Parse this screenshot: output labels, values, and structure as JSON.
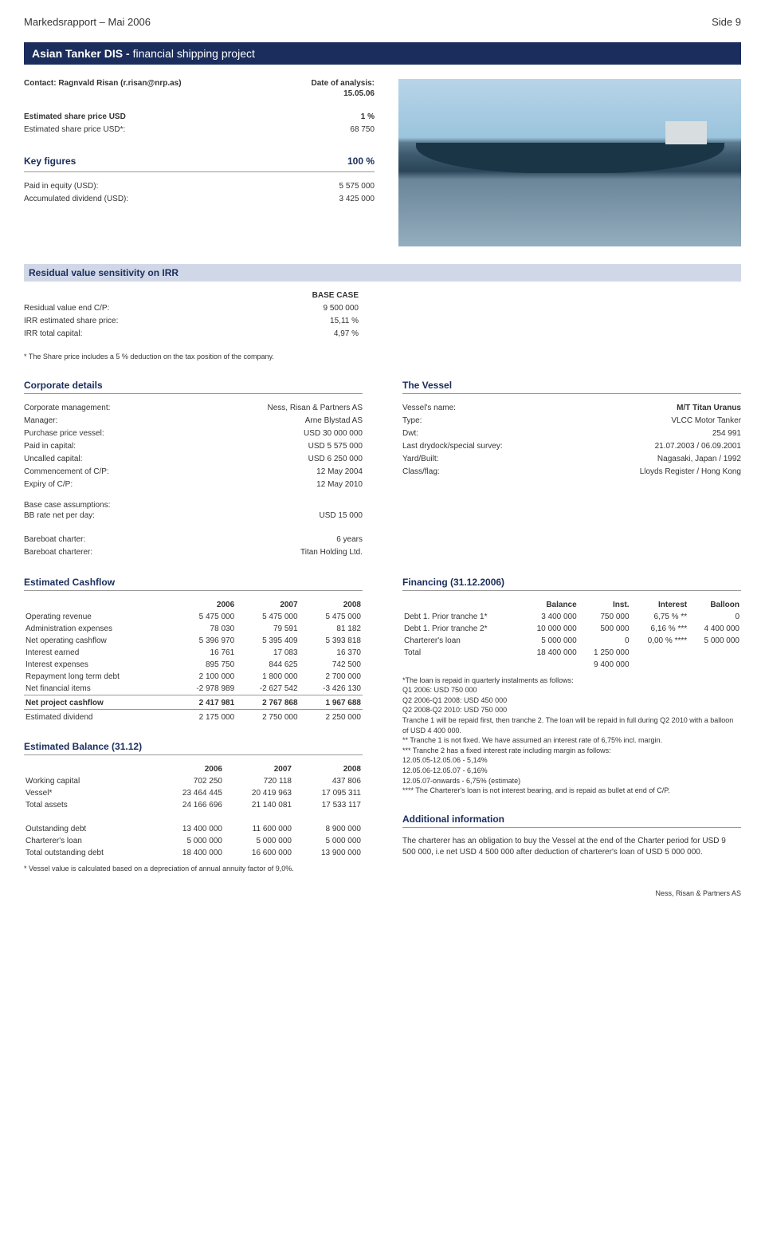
{
  "header": {
    "left": "Markedsrapport – Mai 2006",
    "right": "Side 9"
  },
  "banner": {
    "b1": "Asian Tanker  DIS - ",
    "b2": "financial shipping project"
  },
  "contact": {
    "label": "Contact: Ragnvald Risan (r.risan@nrp.as)",
    "date_lbl": "Date of analysis:",
    "date": "15.05.06"
  },
  "esp": {
    "l1_lbl": "Estimated share price USD",
    "l1_val": "1 %",
    "l2_lbl": "Estimated share price USD*:",
    "l2_val": "68 750"
  },
  "keyfig": {
    "hdr": "Key figures",
    "col_val": "100 %",
    "r1_lbl": "Paid in equity (USD):",
    "r1_val": "5 575 000",
    "r2_lbl": "Accumulated dividend (USD):",
    "r2_val": "3 425 000"
  },
  "sens": {
    "hdr": "Residual value sensitivity on IRR",
    "col_val": "BASE CASE",
    "r1_lbl": "Residual value end C/P:",
    "r1_val": "9 500 000",
    "r2_lbl": "IRR estimated share price:",
    "r2_val": "15,11 %",
    "r3_lbl": "IRR total capital:",
    "r3_val": "4,97 %"
  },
  "note1": "* The Share price includes a 5 % deduction on the tax position of the company.",
  "corp": {
    "hdr": "Corporate details",
    "rows": [
      [
        "Corporate  management:",
        "Ness, Risan & Partners AS"
      ],
      [
        "Manager:",
        "Arne Blystad AS"
      ],
      [
        "",
        ""
      ],
      [
        "Purchase price vessel:",
        "USD 30 000 000"
      ],
      [
        "Paid in capital:",
        "USD   5 575 000"
      ],
      [
        "Uncalled capital:",
        "USD   6 250 000"
      ],
      [
        "Commencement of C/P:",
        "12 May 2004"
      ],
      [
        "Expiry of C/P:",
        "12 May 2010"
      ]
    ],
    "base_lbl": "Base case assumptions:",
    "bb_lbl": "BB rate net per day:",
    "bb_val": "USD 15 000",
    "bc_lbl": "Bareboat charter:",
    "bc_val": "6 years",
    "bch_lbl": "Bareboat charterer:",
    "bch_val": "Titan Holding Ltd."
  },
  "vessel": {
    "hdr": "The Vessel",
    "rows": [
      [
        "Vessel's name:",
        "M/T Titan Uranus"
      ],
      [
        "Type:",
        "VLCC Motor Tanker"
      ],
      [
        "Dwt:",
        "254 991"
      ],
      [
        "Last drydock/special survey:",
        "21.07.2003 / 06.09.2001"
      ],
      [
        "Yard/Built:",
        "Nagasaki, Japan / 1992"
      ],
      [
        "Class/flag:",
        "Lloyds Register / Hong Kong"
      ]
    ]
  },
  "cash": {
    "hdr": "Estimated Cashflow",
    "cols": [
      "",
      "2006",
      "2007",
      "2008"
    ],
    "rows": [
      [
        "Operating revenue",
        "5 475 000",
        "5 475 000",
        "5 475 000"
      ],
      [
        "Administration expenses",
        "78 030",
        "79 591",
        "81 182"
      ],
      [
        "Net operating cashflow",
        "5 396 970",
        "5 395 409",
        "5 393 818"
      ],
      [
        "Interest earned",
        "16 761",
        "17 083",
        "16 370"
      ],
      [
        "Interest expenses",
        "895 750",
        "844 625",
        "742 500"
      ],
      [
        "Repayment long term debt",
        "2 100 000",
        "1 800 000",
        "2 700 000"
      ],
      [
        "Net financial items",
        "-2 978 989",
        "-2 627 542",
        "-3 426 130"
      ]
    ],
    "net_row": [
      "Net project cashflow",
      "2 417 981",
      "2 767 868",
      "1 967 688"
    ],
    "div_row": [
      "Estimated dividend",
      "2 175 000",
      "2 750 000",
      "2 250 000"
    ]
  },
  "fin": {
    "hdr": "Financing (31.12.2006)",
    "cols": [
      "",
      "Balance",
      "Inst.",
      "Interest",
      "Balloon"
    ],
    "rows": [
      [
        "Debt 1. Prior tranche 1*",
        "3 400 000",
        "750 000",
        "6,75 % **",
        "0"
      ],
      [
        "Debt 1. Prior tranche 2*",
        "10 000 000",
        "500 000",
        "6,16 % ***",
        "4 400 000"
      ],
      [
        "Charterer's loan",
        "5 000 000",
        "0",
        "0,00 % ****",
        "5 000 000"
      ],
      [
        "Total",
        "18 400 000",
        "1 250 000",
        "",
        ""
      ],
      [
        "",
        "",
        "9 400 000",
        "",
        ""
      ]
    ],
    "notes": [
      "*The loan is repaid in quarterly instalments as follows:",
      "Q1 2006:             USD 750 000",
      "Q2 2006-Q1 2008: USD 450 000",
      "Q2 2008-Q2 2010: USD 750 000",
      "Tranche 1 will be repaid first, then tranche 2. The loan will be repaid in full during Q2 2010 with a balloon of USD 4 400 000.",
      "** Tranche 1 is not fixed. We have assumed an interest rate of 6,75% incl. margin.",
      "*** Tranche 2 has a fixed interest rate including margin as follows:",
      "12.05.05-12.05.06  - 5,14%",
      "12.05.06-12.05.07  - 6,16%",
      "12.05.07-onwards  - 6,75% (estimate)",
      "**** The Charterer's loan is not interest bearing, and is repaid as bullet at end of C/P."
    ]
  },
  "bal": {
    "hdr": "Estimated Balance (31.12)",
    "cols": [
      "",
      "2006",
      "2007",
      "2008"
    ],
    "rows": [
      [
        "Working capital",
        "702 250",
        "720 118",
        "437 806"
      ],
      [
        "Vessel*",
        "23 464 445",
        "20 419 963",
        "17 095 311"
      ],
      [
        "Total assets",
        "24 166 696",
        "21 140 081",
        "17 533 117"
      ]
    ],
    "rows2": [
      [
        "Outstanding debt",
        "13 400 000",
        "11 600 000",
        "8 900 000"
      ],
      [
        "Charterer's loan",
        "5 000 000",
        "5 000 000",
        "5 000 000"
      ],
      [
        "Total outstanding debt",
        "18 400 000",
        "16 600 000",
        "13 900 000"
      ]
    ],
    "note": "* Vessel  value is calculated based on a depreciation of annual annuity factor of 9,0%."
  },
  "add": {
    "hdr": "Additional information",
    "text": "The charterer has an obligation to buy the Vessel at the end of the Charter period for USD 9 500 000, i.e net USD 4 500 000 after deduction of charterer's loan of USD 5 000 000."
  },
  "footer": "Ness, Risan & Partners AS"
}
